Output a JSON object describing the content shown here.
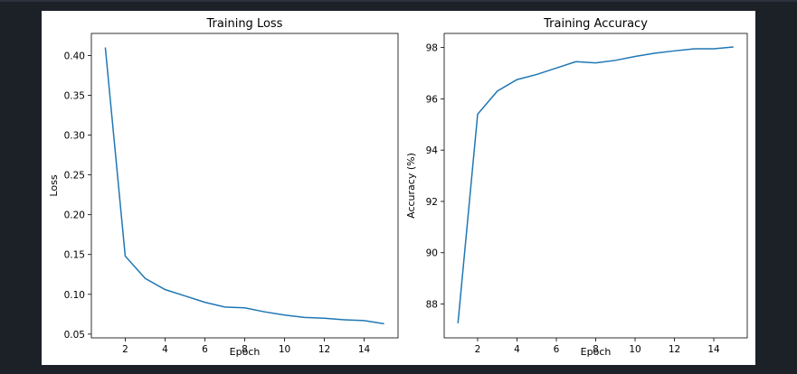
{
  "chart_data": [
    {
      "type": "line",
      "title": "Training Loss",
      "xlabel": "Epoch",
      "ylabel": "Loss",
      "xlim": [
        0.3,
        15.7
      ],
      "ylim": [
        0.0453,
        0.4277
      ],
      "xticks": [
        "2",
        "4",
        "6",
        "8",
        "10",
        "12",
        "14"
      ],
      "yticks": [
        "0.05",
        "0.10",
        "0.15",
        "0.20",
        "0.25",
        "0.30",
        "0.35",
        "0.40"
      ],
      "grid": false,
      "color": "#1f77b4",
      "series": [
        {
          "x": [
            1,
            2,
            3,
            4,
            5,
            6,
            7,
            8,
            9,
            10,
            11,
            12,
            13,
            14,
            15
          ],
          "values": [
            0.41,
            0.148,
            0.12,
            0.106,
            0.098,
            0.09,
            0.084,
            0.083,
            0.078,
            0.074,
            0.071,
            0.07,
            0.068,
            0.067,
            0.063
          ]
        }
      ]
    },
    {
      "type": "line",
      "title": "Training Accuracy",
      "xlabel": "Epoch",
      "ylabel": "Accuracy (%)",
      "xlim": [
        0.3,
        15.7
      ],
      "ylim": [
        86.68,
        98.55
      ],
      "xticks": [
        "2",
        "4",
        "6",
        "8",
        "10",
        "12",
        "14"
      ],
      "yticks": [
        "88",
        "90",
        "92",
        "94",
        "96",
        "98"
      ],
      "grid": false,
      "color": "#1f77b4",
      "series": [
        {
          "x": [
            1,
            2,
            3,
            4,
            5,
            6,
            7,
            8,
            9,
            10,
            11,
            12,
            13,
            14,
            15
          ],
          "values": [
            87.25,
            95.4,
            96.3,
            96.75,
            96.95,
            97.2,
            97.45,
            97.4,
            97.5,
            97.65,
            97.78,
            97.87,
            97.95,
            97.95,
            98.02
          ]
        }
      ]
    }
  ]
}
